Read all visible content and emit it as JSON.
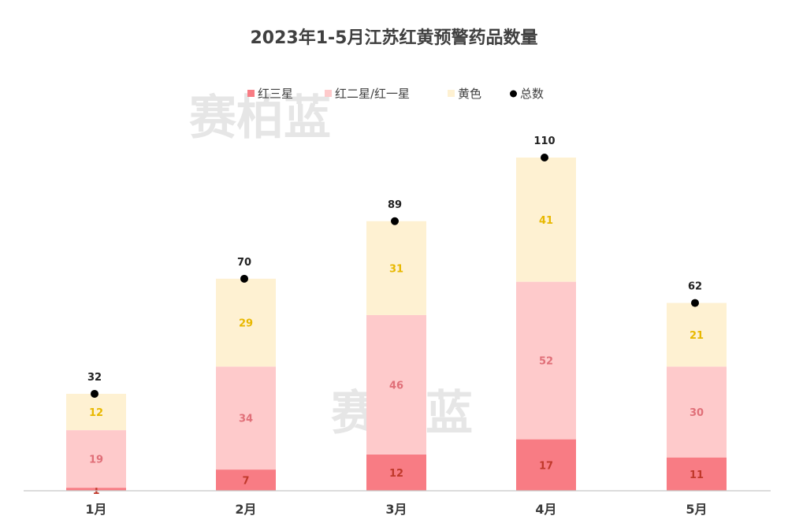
{
  "chart_data": {
    "type": "bar",
    "stacked": true,
    "title": "2023年1-5月江苏红黄预警药品数量",
    "categories": [
      "1月",
      "2月",
      "3月",
      "4月",
      "5月"
    ],
    "series": [
      {
        "name": "红三星",
        "values": [
          1,
          7,
          12,
          17,
          11
        ],
        "color": "#f87c84",
        "label_color": "#c0392b"
      },
      {
        "name": "红二星/红一星",
        "values": [
          19,
          34,
          46,
          52,
          30
        ],
        "color": "#fecacb",
        "label_color": "#e06f78"
      },
      {
        "name": "黄色",
        "values": [
          12,
          29,
          31,
          41,
          21
        ],
        "color": "#fef1d2",
        "label_color": "#e8b800"
      }
    ],
    "totals": {
      "name": "总数",
      "values": [
        32,
        70,
        89,
        110,
        62
      ],
      "color": "#000000"
    },
    "ylim": [
      0,
      110
    ],
    "legend_position": "top-center",
    "xlabel": "",
    "ylabel": ""
  },
  "watermark": {
    "text": "赛柏蓝"
  }
}
